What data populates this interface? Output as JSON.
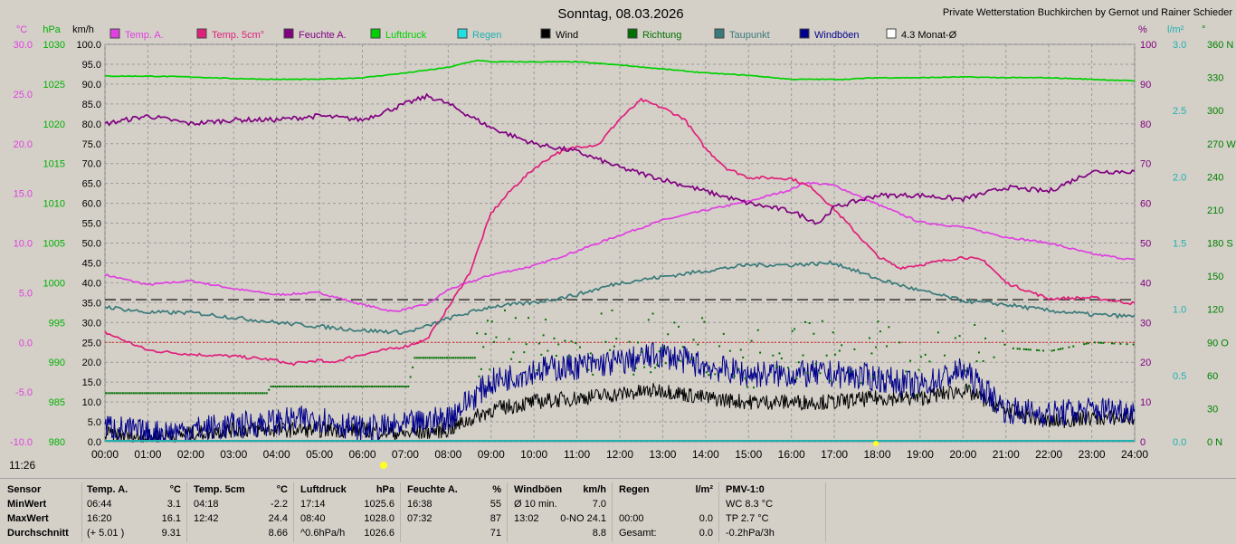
{
  "chart_data": {
    "type": "line",
    "title": "Sonntag, 08.03.2026",
    "credit": "Private Wetterstation Buchkirchen by Gernot und Rainer Schieder",
    "current_time": "11:26",
    "xlabel": "",
    "x_ticks": [
      "00:00",
      "01:00",
      "02:00",
      "03:00",
      "04:00",
      "05:00",
      "06:00",
      "07:00",
      "08:00",
      "09:00",
      "10:00",
      "11:00",
      "12:00",
      "13:00",
      "14:00",
      "15:00",
      "16:00",
      "17:00",
      "18:00",
      "19:00",
      "20:00",
      "21:00",
      "22:00",
      "23:00",
      "24:00"
    ],
    "axes": {
      "temp": {
        "unit": "°C",
        "min": -10,
        "max": 30,
        "ticks": [
          "30.0",
          "25.0",
          "20.0",
          "15.0",
          "10.0",
          "5.0",
          "0.0",
          "-5.0",
          "-10.0"
        ],
        "color": "#e040e0"
      },
      "pressure": {
        "unit": "hPa",
        "min": 980,
        "max": 1030,
        "ticks": [
          "1030",
          "1025",
          "1020",
          "1015",
          "1010",
          "1005",
          "1000",
          "995",
          "990",
          "985",
          "980"
        ],
        "color": "#00b000"
      },
      "speed": {
        "unit": "km/h",
        "min": 0,
        "max": 100,
        "ticks": [
          "100.0",
          "95.0",
          "90.0",
          "85.0",
          "80.0",
          "75.0",
          "70.0",
          "65.0",
          "60.0",
          "55.0",
          "50.0",
          "45.0",
          "40.0",
          "35.0",
          "30.0",
          "25.0",
          "20.0",
          "15.0",
          "10.0",
          "5.0",
          "0.0"
        ],
        "color": "#000000"
      },
      "humidity": {
        "unit": "%",
        "min": 0,
        "max": 100,
        "ticks": [
          "100",
          "90",
          "80",
          "70",
          "60",
          "50",
          "40",
          "30",
          "20",
          "10",
          "0"
        ],
        "color": "#800080"
      },
      "rain": {
        "unit": "l/m²",
        "min": 0,
        "max": 3,
        "ticks": [
          "3.0",
          "2.5",
          "2.0",
          "1.5",
          "1.0",
          "0.5",
          "0.0"
        ],
        "color": "#20b0b0"
      },
      "direction": {
        "unit": "°",
        "min": 0,
        "max": 360,
        "ticks": [
          "360 N",
          "330",
          "300",
          "270 W",
          "240",
          "210",
          "180 S",
          "150",
          "120",
          "90 O",
          "60",
          "30",
          "0 N"
        ],
        "color": "#008000"
      }
    },
    "reference_lines": {
      "avg_4_3_month_temp": 4.3,
      "zero_temp": 0.0
    },
    "legend": [
      "Temp. A.",
      "Temp. 5cm°",
      "Feuchte A.",
      "Luftdruck",
      "Regen",
      "Wind",
      "Richtung",
      "Taupunkt",
      "Windböen",
      "4.3 Monat-Ø"
    ],
    "series": [
      {
        "name": "Temp. A.",
        "axis": "temp",
        "color": "#e040e0",
        "x": [
          0,
          1,
          2,
          3,
          4,
          5,
          6,
          6.73,
          7.5,
          8,
          9,
          10,
          11,
          12,
          13,
          14,
          15,
          16,
          16.33,
          17,
          18,
          19,
          20,
          21,
          22,
          23,
          24
        ],
        "y": [
          6.8,
          5.8,
          6.2,
          5.4,
          4.8,
          5.0,
          3.8,
          3.1,
          3.8,
          5.3,
          6.8,
          7.7,
          9.2,
          10.8,
          12.3,
          13.3,
          14.2,
          15.4,
          16.1,
          15.8,
          13.9,
          12.1,
          11.6,
          10.6,
          10.0,
          8.9,
          8.3
        ]
      },
      {
        "name": "Temp. 5cm°",
        "axis": "temp",
        "color": "#e0207a",
        "x": [
          0,
          1,
          2,
          3,
          4,
          4.3,
          5,
          5.2,
          6,
          7,
          7.5,
          8,
          8.5,
          9,
          9.5,
          10,
          10.5,
          11,
          11.5,
          12,
          12.5,
          13,
          13.5,
          14,
          14.5,
          15,
          16,
          16.5,
          17,
          18,
          18.5,
          19,
          20,
          20.5,
          21,
          22,
          23,
          24
        ],
        "y": [
          1.0,
          -0.8,
          -1.2,
          -1.4,
          -1.8,
          -2.2,
          -1.8,
          -2.1,
          -1.2,
          -0.4,
          0.3,
          3.5,
          7.0,
          13.0,
          15.5,
          17.5,
          19.0,
          19.7,
          19.9,
          22.5,
          24.4,
          23.6,
          22.5,
          19.5,
          17.5,
          16.6,
          16.5,
          15.5,
          13.4,
          8.7,
          7.5,
          7.8,
          8.6,
          8.2,
          6.0,
          4.4,
          4.5,
          3.9
        ]
      },
      {
        "name": "Feuchte A.",
        "axis": "humidity",
        "color": "#800080",
        "x": [
          0,
          1,
          2,
          3,
          4,
          5,
          6,
          7,
          7.53,
          8,
          8.5,
          9,
          10,
          11,
          12,
          13,
          14,
          15,
          16,
          16.63,
          17,
          18,
          19,
          20,
          21,
          22,
          23,
          24
        ],
        "y": [
          80,
          82,
          80,
          81,
          81,
          82,
          81,
          85,
          87,
          85,
          82,
          79,
          75,
          73,
          69,
          66,
          63,
          60,
          58,
          55,
          59,
          62,
          62,
          61,
          64,
          63,
          68,
          68
        ]
      },
      {
        "name": "Luftdruck",
        "axis": "pressure",
        "color": "#00d000",
        "x": [
          0,
          1,
          2,
          3,
          4,
          5,
          6,
          7,
          8,
          8.67,
          9,
          10,
          11,
          12,
          13,
          14,
          15,
          16,
          17,
          17.23,
          18,
          19,
          20,
          21,
          22,
          23,
          24
        ],
        "y": [
          1026.0,
          1026.0,
          1025.9,
          1025.7,
          1025.6,
          1025.6,
          1025.8,
          1026.4,
          1027.1,
          1028.0,
          1027.8,
          1027.8,
          1027.8,
          1027.4,
          1026.9,
          1026.4,
          1026.1,
          1025.6,
          1025.6,
          1025.6,
          1025.8,
          1025.8,
          1025.9,
          1025.8,
          1025.8,
          1025.6,
          1025.4
        ]
      },
      {
        "name": "Taupunkt",
        "axis": "temp",
        "color": "#3a7a7a",
        "x": [
          0,
          1,
          2,
          3,
          4,
          5,
          6,
          7,
          7.5,
          8,
          9,
          10,
          11,
          12,
          13,
          14,
          15,
          16,
          17,
          18,
          19,
          20,
          21,
          22,
          23,
          24
        ],
        "y": [
          3.6,
          3.0,
          3.0,
          2.5,
          2.0,
          1.6,
          1.2,
          1.0,
          1.6,
          2.4,
          3.6,
          4.0,
          4.8,
          6.0,
          6.6,
          7.2,
          7.8,
          7.8,
          8.0,
          6.4,
          5.2,
          4.2,
          3.8,
          3.2,
          2.8,
          2.6
        ]
      },
      {
        "name": "Wind",
        "axis": "speed",
        "color": "#000000",
        "x": [
          0,
          1,
          2,
          3,
          4,
          5,
          6,
          7,
          8,
          9,
          10,
          11,
          12,
          13,
          14,
          15,
          16,
          17,
          18,
          19,
          20,
          21,
          22,
          23,
          24
        ],
        "y": [
          2,
          1,
          2,
          3,
          3,
          3,
          3,
          2,
          3,
          8,
          10,
          11,
          12,
          13,
          11,
          10,
          10,
          10,
          11,
          11,
          13,
          8,
          5,
          6,
          6
        ]
      },
      {
        "name": "Windböen",
        "axis": "speed",
        "color": "#00008b",
        "x": [
          0,
          1,
          2,
          3,
          4,
          5,
          6,
          7,
          8,
          9,
          10,
          11,
          12,
          13,
          14,
          15,
          16,
          17,
          18,
          19,
          20,
          21,
          22,
          23,
          24
        ],
        "y": [
          4,
          2,
          3,
          4,
          5,
          6,
          3,
          4,
          6,
          15,
          18,
          19,
          20,
          22,
          19,
          17,
          17,
          17,
          16,
          14,
          18,
          8,
          7,
          8,
          8
        ]
      },
      {
        "name": "Richtung",
        "axis": "direction",
        "color": "#007000",
        "x": [
          0,
          3.75,
          3.85,
          7.05,
          7.2,
          8.6,
          9,
          10,
          11,
          12,
          13,
          14,
          15,
          16,
          17,
          18,
          19,
          20,
          21,
          22,
          23,
          24
        ],
        "y": [
          44,
          44,
          50,
          50,
          76,
          76,
          88,
          95,
          80,
          92,
          88,
          85,
          75,
          85,
          80,
          82,
          70,
          75,
          85,
          82,
          90,
          88
        ]
      }
    ]
  },
  "stats": {
    "columns": [
      {
        "title": "Sensor",
        "unit": "",
        "rows": [
          {
            "time": "MinWert",
            "value": ""
          },
          {
            "time": "MaxWert",
            "value": ""
          },
          {
            "time": "Durchschnitt",
            "value": ""
          }
        ]
      },
      {
        "title": "Temp. A.",
        "unit": "°C",
        "rows": [
          {
            "time": "06:44",
            "value": "3.1"
          },
          {
            "time": "16:20",
            "value": "16.1"
          },
          {
            "time": "(+ 5.01 )",
            "value": "9.31"
          }
        ]
      },
      {
        "title": "Temp. 5cm",
        "unit": "°C",
        "rows": [
          {
            "time": "04:18",
            "value": "-2.2"
          },
          {
            "time": "12:42",
            "value": "24.4"
          },
          {
            "time": "",
            "value": "8.66"
          }
        ]
      },
      {
        "title": "Luftdruck",
        "unit": "hPa",
        "rows": [
          {
            "time": "17:14",
            "value": "1025.6"
          },
          {
            "time": "08:40",
            "value": "1028.0"
          },
          {
            "time": "^0.6hPa/h",
            "value": "1026.6"
          }
        ]
      },
      {
        "title": "Feuchte A.",
        "unit": "%",
        "rows": [
          {
            "time": "16:38",
            "value": "55"
          },
          {
            "time": "07:32",
            "value": "87"
          },
          {
            "time": "",
            "value": "71"
          }
        ]
      },
      {
        "title": "Windböen",
        "unit": "km/h",
        "rows": [
          {
            "time": "Ø 10 min.",
            "value": "7.0"
          },
          {
            "time": "13:02",
            "value": "0-NO 24.1"
          },
          {
            "time": "",
            "value": "8.8"
          }
        ]
      },
      {
        "title": "Regen",
        "unit": "l/m²",
        "rows": [
          {
            "time": "",
            "value": ""
          },
          {
            "time": "00:00",
            "value": "0.0"
          },
          {
            "time": "Gesamt:",
            "value": "0.0"
          }
        ]
      },
      {
        "title": "PMV-1:0",
        "unit": "",
        "rows": [
          {
            "time": "WC 8.3 °C",
            "value": ""
          },
          {
            "time": "TP 2.7 °C",
            "value": ""
          },
          {
            "time": "-0.2hPa/3h",
            "value": ""
          }
        ]
      }
    ]
  }
}
